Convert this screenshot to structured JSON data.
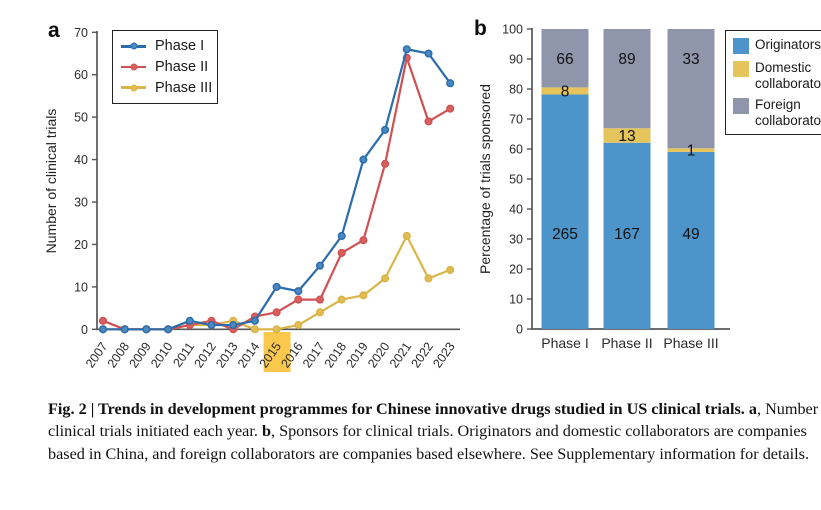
{
  "panels": {
    "a_label": "a",
    "b_label": "b"
  },
  "colors": {
    "axis": "#57585a",
    "tick_text": "#2b2b2b",
    "number_text": "#111111",
    "highlight": "#f9c84d"
  },
  "chart_data": [
    {
      "id": "trials-by-year",
      "panel": "a",
      "type": "line",
      "ylabel": "Number of clinical trials",
      "xlabel": "",
      "ylim": [
        0,
        70
      ],
      "yticks": [
        0,
        10,
        20,
        30,
        40,
        50,
        60,
        70
      ],
      "grid": false,
      "legend_position": "top-left",
      "highlighted_x": 2015,
      "x": [
        2007,
        2008,
        2009,
        2010,
        2011,
        2012,
        2013,
        2014,
        2015,
        2016,
        2017,
        2018,
        2019,
        2020,
        2021,
        2022,
        2023
      ],
      "series": [
        {
          "name": "Phase I",
          "color": "#2b6cad",
          "dot_fill": "#4b8ac0",
          "values": [
            0,
            0,
            0,
            0,
            2,
            1,
            1,
            2,
            10,
            9,
            15,
            22,
            40,
            47,
            66,
            65,
            58
          ]
        },
        {
          "name": "Phase II",
          "color": "#d05152",
          "dot_fill": "#d8605f",
          "values": [
            2,
            0,
            0,
            0,
            1,
            2,
            0,
            3,
            4,
            7,
            7,
            18,
            21,
            39,
            64,
            49,
            52
          ]
        },
        {
          "name": "Phase III",
          "color": "#d9b447",
          "dot_fill": "#e0bd55",
          "values": [
            0,
            0,
            0,
            0,
            1,
            1,
            2,
            0,
            0,
            1,
            4,
            7,
            8,
            12,
            22,
            12,
            14
          ]
        }
      ]
    },
    {
      "id": "sponsors-by-phase",
      "panel": "b",
      "type": "bar",
      "stacked": true,
      "normalized_percent": true,
      "ylabel": "Percentage of trials sponsored",
      "xlabel": "",
      "ylim": [
        0,
        100
      ],
      "yticks": [
        0,
        10,
        20,
        30,
        40,
        50,
        60,
        70,
        80,
        90,
        100
      ],
      "grid": false,
      "legend_position": "right",
      "categories": [
        "Phase I",
        "Phase II",
        "Phase III"
      ],
      "series": [
        {
          "name": "Originators",
          "color": "#4d94cb",
          "counts": [
            265,
            167,
            49
          ]
        },
        {
          "name": "Domestic collaborators",
          "color": "#e5c45c",
          "counts": [
            8,
            13,
            1
          ]
        },
        {
          "name": "Foreign collaborators",
          "color": "#8f96ac",
          "counts": [
            66,
            89,
            33
          ]
        }
      ]
    }
  ],
  "caption": {
    "title": "Fig. 2 | Trends in development programmes for Chinese innovative drugs studied in US clinical trials. ",
    "a_label": "a",
    "a_text": ", Number of clinical trials initiated each year. ",
    "b_label": "b",
    "b_text": ", Sponsors for clinical trials. Originators and domestic collaborators are companies based in China, and foreign collaborators are companies based elsewhere. See Supplementary information for details."
  }
}
